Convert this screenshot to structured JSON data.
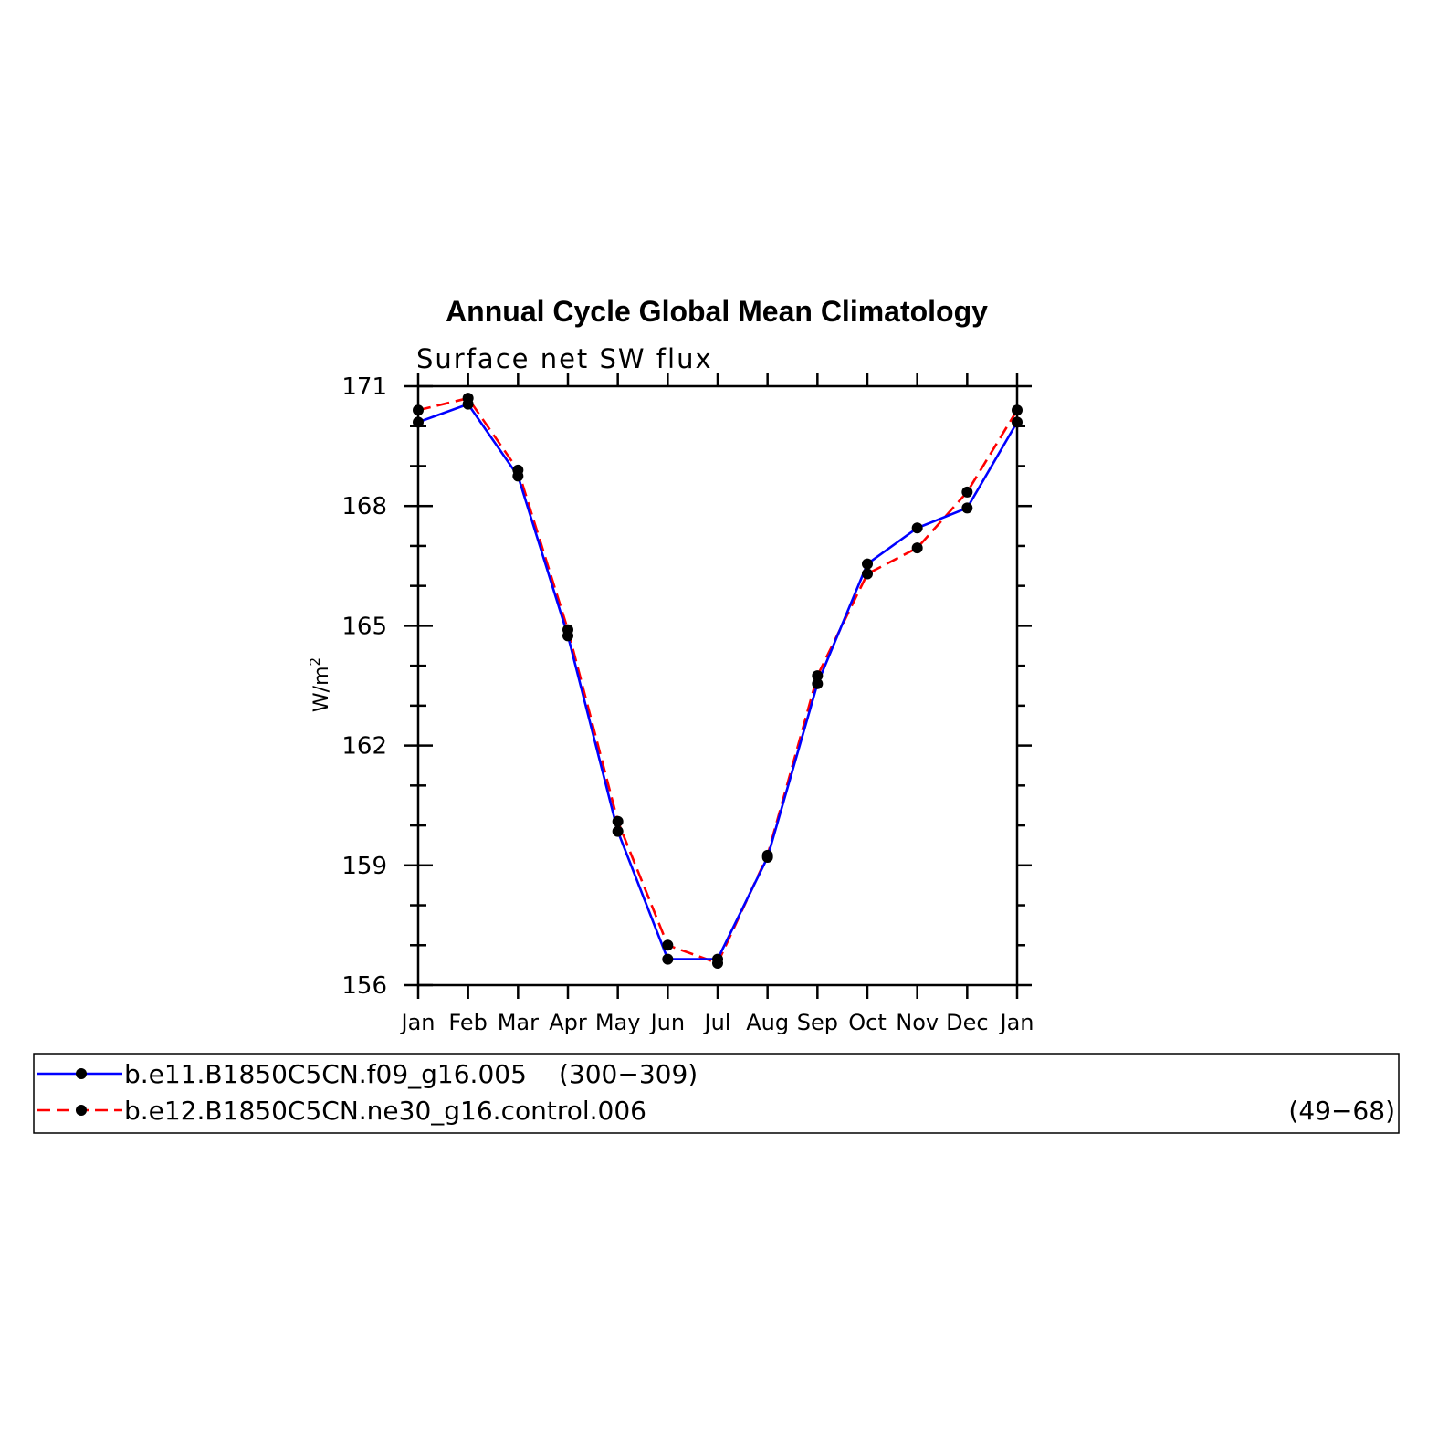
{
  "chart_data": {
    "type": "line",
    "title": "Annual Cycle Global Mean Climatology",
    "subtitle": "Surface net SW flux",
    "ylabel_main": "W/m",
    "ylabel_sup": "2",
    "categories": [
      "Jan",
      "Feb",
      "Mar",
      "Apr",
      "May",
      "Jun",
      "Jul",
      "Aug",
      "Sep",
      "Oct",
      "Nov",
      "Dec",
      "Jan"
    ],
    "ylim": [
      156,
      171
    ],
    "yticks": [
      156,
      159,
      162,
      165,
      168,
      171
    ],
    "series": [
      {
        "name": "b.e11.B1850C5CN.f09_g16.005",
        "years": "(300−309)",
        "color": "#0000ff",
        "dash": "solid",
        "values": [
          170.1,
          170.55,
          168.75,
          164.75,
          159.85,
          156.65,
          156.65,
          159.2,
          163.55,
          166.55,
          167.45,
          167.95,
          170.1
        ]
      },
      {
        "name": "b.e12.B1850C5CN.ne30_g16.control.006",
        "years": "(49−68)",
        "color": "#ff0000",
        "dash": "dashed",
        "values": [
          170.4,
          170.7,
          168.9,
          164.9,
          160.1,
          157.0,
          156.55,
          159.25,
          163.75,
          166.3,
          166.95,
          168.35,
          170.4
        ]
      }
    ],
    "legend_position": "bottom",
    "marker": "filled-circle",
    "marker_color": "#000000"
  }
}
